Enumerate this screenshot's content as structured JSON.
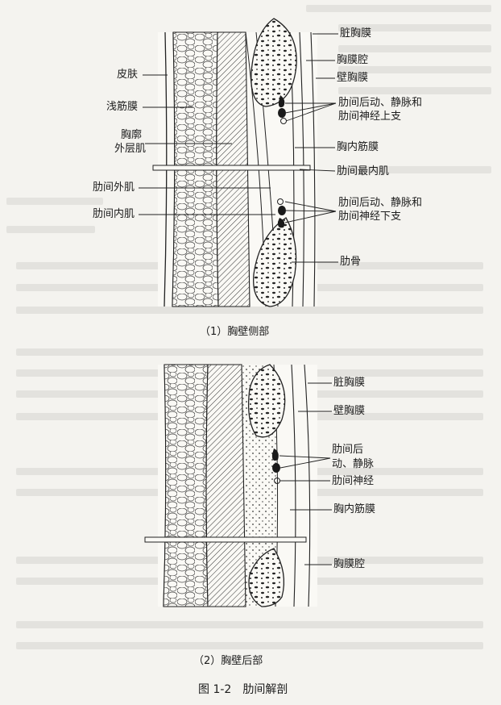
{
  "panel1": {
    "caption": "（1）胸壁侧部",
    "labels": {
      "visceral_pleura": "脏胸膜",
      "pleural_cavity": "胸膜腔",
      "parietal_pleura": "壁胸膜",
      "skin": "皮肤",
      "superficial_fascia": "浅筋膜",
      "upper_branch_line1": "肋间后动、静脉和",
      "upper_branch_line2": "肋间神经上支",
      "thoracic_wall_line1": "胸廓",
      "thoracic_wall_line2": "外层肌",
      "endothoracic_fascia": "胸内筋膜",
      "innermost_intercostal": "肋间最内肌",
      "external_intercostal": "肋间外肌",
      "internal_intercostal": "肋间内肌",
      "lower_branch_line1": "肋间后动、静脉和",
      "lower_branch_line2": "肋间神经下支",
      "rib": "肋骨"
    }
  },
  "panel2": {
    "caption": "（2）胸壁后部",
    "labels": {
      "visceral_pleura": "脏胸膜",
      "parietal_pleura": "壁胸膜",
      "vessels_line1": "肋间后",
      "vessels_line2": "动、静脉",
      "intercostal_nerve": "肋间神经",
      "endothoracic_fascia": "胸内筋膜",
      "pleural_cavity": "胸膜腔"
    }
  },
  "figure_caption": "图 1-2　肋间解剖"
}
